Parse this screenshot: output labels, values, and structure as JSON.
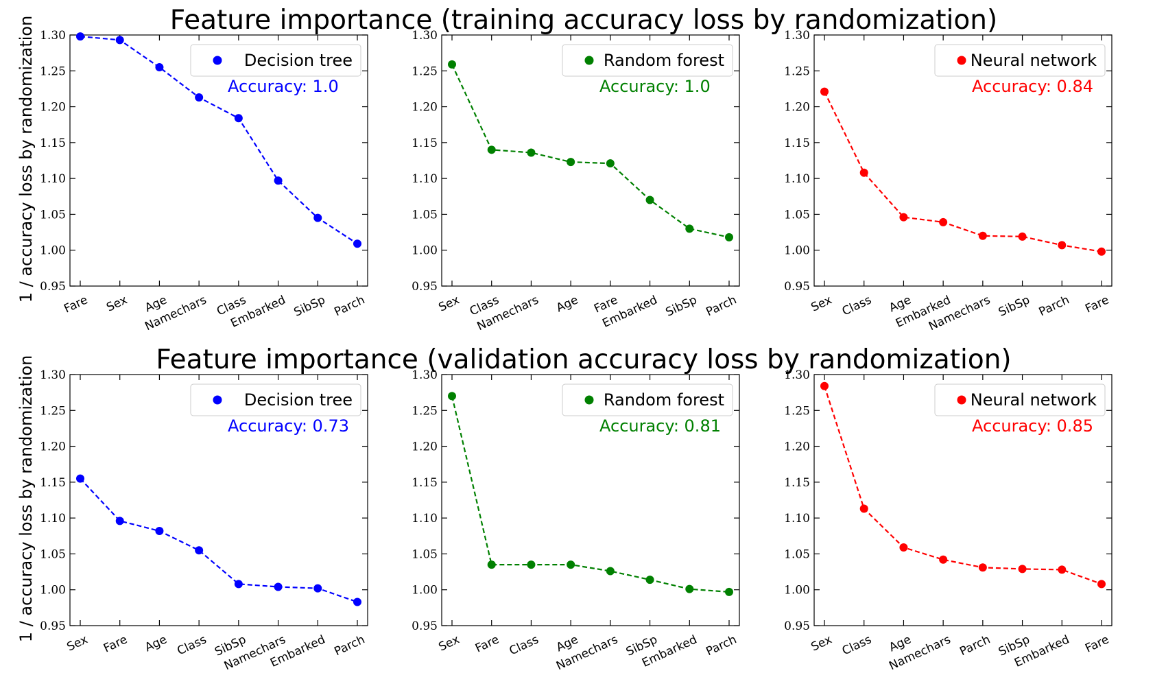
{
  "titles": {
    "top": "Feature importance (training accuracy loss by randomization)",
    "bottom": "Feature importance (validation accuracy loss by randomization)"
  },
  "ylabel": "1 / accuracy loss by randomization",
  "colors": {
    "Decision tree": "#0000ff",
    "Random forest": "#008000",
    "Neural network": "#ff0000"
  },
  "chart_data": [
    {
      "type": "line",
      "model": "Decision tree",
      "accuracy_label": "Accuracy: 1.0",
      "color": "#0000ff",
      "categories": [
        "Fare",
        "Sex",
        "Age",
        "Namechars",
        "Class",
        "Embarked",
        "SibSp",
        "Parch"
      ],
      "values": [
        1.298,
        1.293,
        1.255,
        1.213,
        1.184,
        1.097,
        1.045,
        1.009
      ],
      "ylim": [
        0.95,
        1.3
      ],
      "yticks": [
        "0.95",
        "1.00",
        "1.05",
        "1.10",
        "1.15",
        "1.20",
        "1.25",
        "1.30"
      ],
      "legend": "upper-right",
      "grid": false
    },
    {
      "type": "line",
      "model": "Random forest",
      "accuracy_label": "Accuracy: 1.0",
      "color": "#008000",
      "categories": [
        "Sex",
        "Class",
        "Namechars",
        "Age",
        "Fare",
        "Embarked",
        "SibSp",
        "Parch"
      ],
      "values": [
        1.259,
        1.14,
        1.136,
        1.123,
        1.121,
        1.07,
        1.03,
        1.018
      ],
      "ylim": [
        0.95,
        1.3
      ],
      "yticks": [
        "0.95",
        "1.00",
        "1.05",
        "1.10",
        "1.15",
        "1.20",
        "1.25",
        "1.30"
      ],
      "legend": "upper-right",
      "grid": false
    },
    {
      "type": "line",
      "model": "Neural network",
      "accuracy_label": "Accuracy: 0.84",
      "color": "#ff0000",
      "categories": [
        "Sex",
        "Class",
        "Age",
        "Embarked",
        "Namechars",
        "SibSp",
        "Parch",
        "Fare"
      ],
      "values": [
        1.221,
        1.108,
        1.046,
        1.039,
        1.02,
        1.019,
        1.007,
        0.998
      ],
      "ylim": [
        0.95,
        1.3
      ],
      "yticks": [
        "0.95",
        "1.00",
        "1.05",
        "1.10",
        "1.15",
        "1.20",
        "1.25",
        "1.30"
      ],
      "legend": "upper-right",
      "grid": false
    },
    {
      "type": "line",
      "model": "Decision tree",
      "accuracy_label": "Accuracy: 0.73",
      "color": "#0000ff",
      "categories": [
        "Sex",
        "Fare",
        "Age",
        "Class",
        "SibSp",
        "Namechars",
        "Embarked",
        "Parch"
      ],
      "values": [
        1.155,
        1.096,
        1.082,
        1.055,
        1.008,
        1.004,
        1.002,
        0.983
      ],
      "ylim": [
        0.95,
        1.3
      ],
      "yticks": [
        "0.95",
        "1.00",
        "1.05",
        "1.10",
        "1.15",
        "1.20",
        "1.25",
        "1.30"
      ],
      "legend": "upper-right",
      "grid": false
    },
    {
      "type": "line",
      "model": "Random forest",
      "accuracy_label": "Accuracy: 0.81",
      "color": "#008000",
      "categories": [
        "Sex",
        "Fare",
        "Class",
        "Age",
        "Namechars",
        "SibSp",
        "Embarked",
        "Parch"
      ],
      "values": [
        1.27,
        1.035,
        1.035,
        1.035,
        1.026,
        1.014,
        1.001,
        0.997
      ],
      "ylim": [
        0.95,
        1.3
      ],
      "yticks": [
        "0.95",
        "1.00",
        "1.05",
        "1.10",
        "1.15",
        "1.20",
        "1.25",
        "1.30"
      ],
      "legend": "upper-right",
      "grid": false
    },
    {
      "type": "line",
      "model": "Neural network",
      "accuracy_label": "Accuracy: 0.85",
      "color": "#ff0000",
      "categories": [
        "Sex",
        "Class",
        "Age",
        "Namechars",
        "Parch",
        "SibSp",
        "Embarked",
        "Fare"
      ],
      "values": [
        1.284,
        1.113,
        1.059,
        1.042,
        1.031,
        1.029,
        1.028,
        1.008
      ],
      "ylim": [
        0.95,
        1.3
      ],
      "yticks": [
        "0.95",
        "1.00",
        "1.05",
        "1.10",
        "1.15",
        "1.20",
        "1.25",
        "1.30"
      ],
      "legend": "upper-right",
      "grid": false
    }
  ]
}
